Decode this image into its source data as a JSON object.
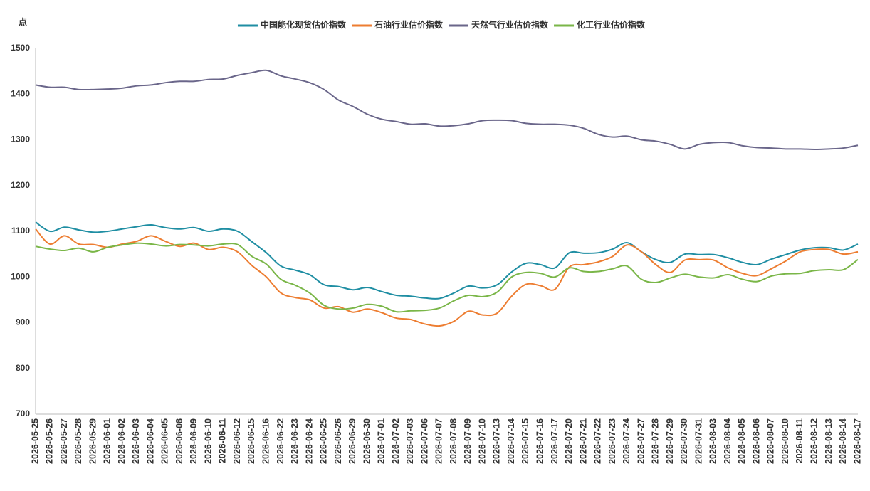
{
  "chart_data": {
    "type": "line",
    "y_label": "点",
    "categories": [
      "2026-05-25",
      "2026-05-26",
      "2026-05-27",
      "2026-05-28",
      "2026-05-29",
      "2026-06-01",
      "2026-06-02",
      "2026-06-03",
      "2026-06-04",
      "2026-06-05",
      "2026-06-08",
      "2026-06-09",
      "2026-06-10",
      "2026-06-11",
      "2026-06-12",
      "2026-06-15",
      "2026-06-16",
      "2026-06-22",
      "2026-06-23",
      "2026-06-24",
      "2026-06-25",
      "2026-06-26",
      "2026-06-29",
      "2026-06-30",
      "2026-07-01",
      "2026-07-02",
      "2026-07-03",
      "2026-07-06",
      "2026-07-07",
      "2026-07-08",
      "2026-07-09",
      "2026-07-10",
      "2026-07-13",
      "2026-07-14",
      "2026-07-15",
      "2026-07-16",
      "2026-07-17",
      "2026-07-20",
      "2026-07-21",
      "2026-07-22",
      "2026-07-23",
      "2026-07-24",
      "2026-07-27",
      "2026-07-28",
      "2026-07-29",
      "2026-07-30",
      "2026-07-31",
      "2026-08-03",
      "2026-08-04",
      "2026-08-05",
      "2026-08-06",
      "2026-08-07",
      "2026-08-10",
      "2026-08-11",
      "2026-08-12",
      "2026-08-13",
      "2026-08-14",
      "2026-08-17"
    ],
    "series": [
      {
        "name": "中国能化现货估价指数",
        "color": "#1f8ea3",
        "values": [
          1120,
          1100,
          1109,
          1103,
          1098,
          1100,
          1105,
          1110,
          1114,
          1108,
          1105,
          1108,
          1100,
          1105,
          1100,
          1077,
          1053,
          1024,
          1015,
          1005,
          983,
          979,
          972,
          977,
          968,
          960,
          958,
          954,
          953,
          965,
          980,
          976,
          983,
          1011,
          1030,
          1027,
          1020,
          1053,
          1052,
          1053,
          1061,
          1075,
          1055,
          1038,
          1032,
          1050,
          1049,
          1049,
          1042,
          1032,
          1027,
          1039,
          1049,
          1059,
          1064,
          1064,
          1059,
          1072
        ]
      },
      {
        "name": "石油行业估价指数",
        "color": "#ed7d31",
        "values": [
          1105,
          1072,
          1090,
          1072,
          1071,
          1065,
          1072,
          1078,
          1090,
          1078,
          1067,
          1074,
          1060,
          1065,
          1055,
          1025,
          1000,
          965,
          955,
          950,
          932,
          935,
          923,
          930,
          922,
          910,
          907,
          897,
          893,
          903,
          925,
          917,
          921,
          958,
          984,
          981,
          973,
          1022,
          1027,
          1033,
          1045,
          1070,
          1055,
          1027,
          1010,
          1037,
          1038,
          1037,
          1020,
          1008,
          1003,
          1018,
          1035,
          1055,
          1060,
          1060,
          1050,
          1055
        ]
      },
      {
        "name": "天然气行业估价指数",
        "color": "#6a668a",
        "values": [
          1420,
          1415,
          1415,
          1410,
          1410,
          1411,
          1413,
          1418,
          1420,
          1425,
          1428,
          1428,
          1432,
          1433,
          1441,
          1447,
          1452,
          1440,
          1433,
          1425,
          1410,
          1387,
          1373,
          1356,
          1345,
          1340,
          1334,
          1335,
          1330,
          1331,
          1335,
          1342,
          1343,
          1342,
          1336,
          1334,
          1334,
          1332,
          1325,
          1312,
          1306,
          1308,
          1300,
          1297,
          1290,
          1280,
          1290,
          1294,
          1294,
          1287,
          1283,
          1282,
          1280,
          1280,
          1279,
          1280,
          1282,
          1288
        ]
      },
      {
        "name": "化工行业估价指数",
        "color": "#7ab648",
        "values": [
          1067,
          1061,
          1058,
          1063,
          1055,
          1065,
          1070,
          1074,
          1072,
          1068,
          1071,
          1070,
          1068,
          1072,
          1071,
          1045,
          1028,
          995,
          982,
          965,
          938,
          930,
          932,
          940,
          936,
          924,
          926,
          927,
          932,
          948,
          960,
          957,
          967,
          1000,
          1010,
          1008,
          1000,
          1020,
          1012,
          1012,
          1018,
          1024,
          995,
          988,
          998,
          1006,
          1000,
          998,
          1005,
          995,
          990,
          1002,
          1007,
          1008,
          1014,
          1016,
          1016,
          1038
        ]
      }
    ],
    "ylim": [
      700,
      1500
    ],
    "yticks": [
      700,
      800,
      900,
      1000,
      1100,
      1200,
      1300,
      1400,
      1500
    ],
    "grid": false,
    "legend": "top"
  }
}
